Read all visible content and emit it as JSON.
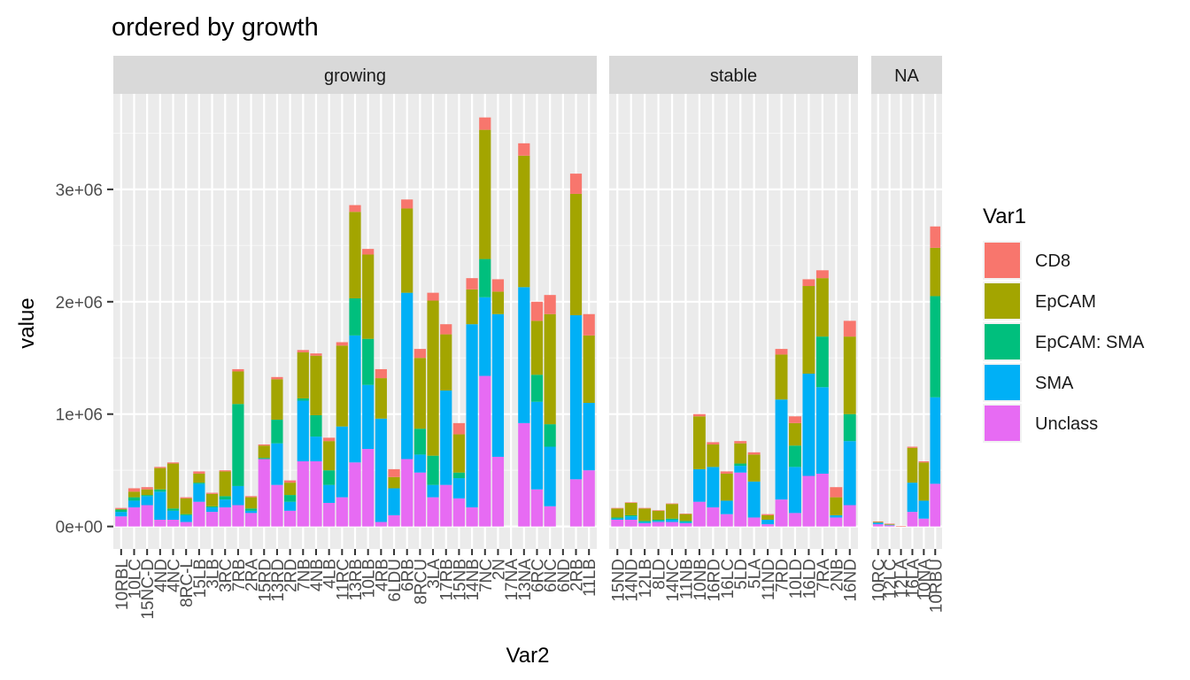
{
  "chart_data": {
    "type": "bar",
    "stacked": true,
    "title": "ordered by growth",
    "xlabel": "Var2",
    "ylabel": "value",
    "ylim": [
      -200000,
      3850000
    ],
    "y_ticks": [
      0,
      1000000,
      2000000,
      3000000
    ],
    "y_tick_labels": [
      "0e+00",
      "1e+06",
      "2e+06",
      "3e+06"
    ],
    "grid": true,
    "legend": {
      "title": "Var1",
      "position": "right",
      "entries": [
        "CD8",
        "EpCAM",
        "EpCAM: SMA",
        "SMA",
        "Unclass"
      ]
    },
    "series_colors": {
      "CD8": "#F8766D",
      "EpCAM": "#A3A500",
      "EpCAM: SMA": "#00BF7D",
      "SMA": "#00B0F6",
      "Unclass": "#E76BF3"
    },
    "stack_order": [
      "Unclass",
      "SMA",
      "EpCAM: SMA",
      "EpCAM",
      "CD8"
    ],
    "panels": [
      {
        "name": "growing",
        "categories": [
          "10RBL",
          "10LC",
          "15NC-D",
          "4ND",
          "4NC",
          "8RC-L",
          "15LB",
          "3LB",
          "3RC",
          "7RB",
          "2RA",
          "15RD",
          "13RD",
          "2RD",
          "7NB",
          "4NB",
          "4LB",
          "11RC",
          "13RB",
          "10LB",
          "4RB",
          "6LDU",
          "6RB",
          "8RCU",
          "3LA",
          "17RB",
          "15NB",
          "14NB",
          "7NC",
          "2N",
          "17NA",
          "13NA",
          "6RC",
          "6NC",
          "6ND",
          "2RB",
          "11LB"
        ],
        "values": [
          [
            10000,
            5000,
            20000,
            40000,
            90000
          ],
          [
            30000,
            50000,
            30000,
            60000,
            170000
          ],
          [
            20000,
            50000,
            10000,
            80000,
            190000
          ],
          [
            10000,
            190000,
            20000,
            250000,
            60000
          ],
          [
            10000,
            400000,
            20000,
            80000,
            60000
          ],
          [
            10000,
            140000,
            10000,
            60000,
            40000
          ],
          [
            20000,
            80000,
            10000,
            160000,
            220000
          ],
          [
            10000,
            110000,
            10000,
            40000,
            130000
          ],
          [
            10000,
            220000,
            30000,
            70000,
            170000
          ],
          [
            20000,
            290000,
            730000,
            170000,
            190000
          ],
          [
            10000,
            100000,
            20000,
            20000,
            120000
          ],
          [
            10000,
            110000,
            10000,
            0,
            600000
          ],
          [
            20000,
            360000,
            210000,
            370000,
            370000
          ],
          [
            20000,
            110000,
            60000,
            80000,
            140000
          ],
          [
            20000,
            410000,
            20000,
            540000,
            580000
          ],
          [
            20000,
            530000,
            190000,
            220000,
            580000
          ],
          [
            30000,
            260000,
            130000,
            160000,
            210000
          ],
          [
            30000,
            720000,
            0,
            630000,
            260000
          ],
          [
            60000,
            770000,
            330000,
            1130000,
            570000
          ],
          [
            50000,
            750000,
            410000,
            570000,
            690000
          ],
          [
            80000,
            360000,
            0,
            920000,
            40000
          ],
          [
            70000,
            100000,
            0,
            240000,
            100000
          ],
          [
            80000,
            750000,
            0,
            1480000,
            600000
          ],
          [
            80000,
            630000,
            230000,
            160000,
            480000
          ],
          [
            70000,
            1380000,
            260000,
            110000,
            260000
          ],
          [
            90000,
            500000,
            0,
            840000,
            370000
          ],
          [
            100000,
            340000,
            50000,
            180000,
            250000
          ],
          [
            100000,
            310000,
            0,
            1630000,
            170000
          ],
          [
            110000,
            1150000,
            340000,
            700000,
            1340000
          ],
          [
            110000,
            200000,
            0,
            1270000,
            620000
          ],
          [
            0,
            0,
            0,
            0,
            0
          ],
          [
            110000,
            1170000,
            0,
            1210000,
            920000
          ],
          [
            170000,
            480000,
            240000,
            780000,
            330000
          ],
          [
            170000,
            980000,
            200000,
            530000,
            180000
          ],
          [
            0,
            0,
            0,
            0,
            0
          ],
          [
            180000,
            1080000,
            0,
            1460000,
            420000
          ],
          [
            190000,
            600000,
            0,
            600000,
            500000
          ]
        ]
      },
      {
        "name": "stable",
        "categories": [
          "15ND",
          "14ND",
          "12LB",
          "8LD",
          "14NC",
          "11NB",
          "10NB",
          "16RD",
          "16LC",
          "5LD",
          "5LA",
          "11ND",
          "7RD",
          "10LD",
          "16LD",
          "7RA",
          "2NB",
          "16ND"
        ],
        "values": [
          [
            5000,
            80000,
            10000,
            10000,
            60000
          ],
          [
            5000,
            110000,
            10000,
            30000,
            60000
          ],
          [
            5000,
            110000,
            10000,
            10000,
            30000
          ],
          [
            5000,
            80000,
            10000,
            10000,
            40000
          ],
          [
            5000,
            130000,
            10000,
            20000,
            40000
          ],
          [
            5000,
            60000,
            10000,
            10000,
            30000
          ],
          [
            20000,
            470000,
            0,
            290000,
            220000
          ],
          [
            20000,
            200000,
            0,
            360000,
            170000
          ],
          [
            20000,
            240000,
            0,
            120000,
            110000
          ],
          [
            20000,
            180000,
            20000,
            60000,
            480000
          ],
          [
            20000,
            240000,
            0,
            320000,
            80000
          ],
          [
            10000,
            40000,
            0,
            40000,
            20000
          ],
          [
            50000,
            400000,
            0,
            890000,
            240000
          ],
          [
            60000,
            200000,
            190000,
            410000,
            120000
          ],
          [
            60000,
            780000,
            0,
            910000,
            450000
          ],
          [
            70000,
            520000,
            450000,
            770000,
            470000
          ],
          [
            90000,
            160000,
            0,
            20000,
            80000
          ],
          [
            140000,
            690000,
            240000,
            570000,
            190000
          ]
        ]
      },
      {
        "name": "NA",
        "categories": [
          "10RC",
          "12LC",
          "12LA",
          "16LA",
          "10NA",
          "10RBU"
        ],
        "values": [
          [
            5000,
            5000,
            0,
            15000,
            20000
          ],
          [
            5000,
            5000,
            0,
            5000,
            10000
          ],
          [
            5000,
            0,
            0,
            0,
            0
          ],
          [
            10000,
            310000,
            0,
            260000,
            130000
          ],
          [
            10000,
            340000,
            0,
            160000,
            70000
          ],
          [
            190000,
            430000,
            900000,
            770000,
            380000
          ]
        ]
      }
    ]
  }
}
